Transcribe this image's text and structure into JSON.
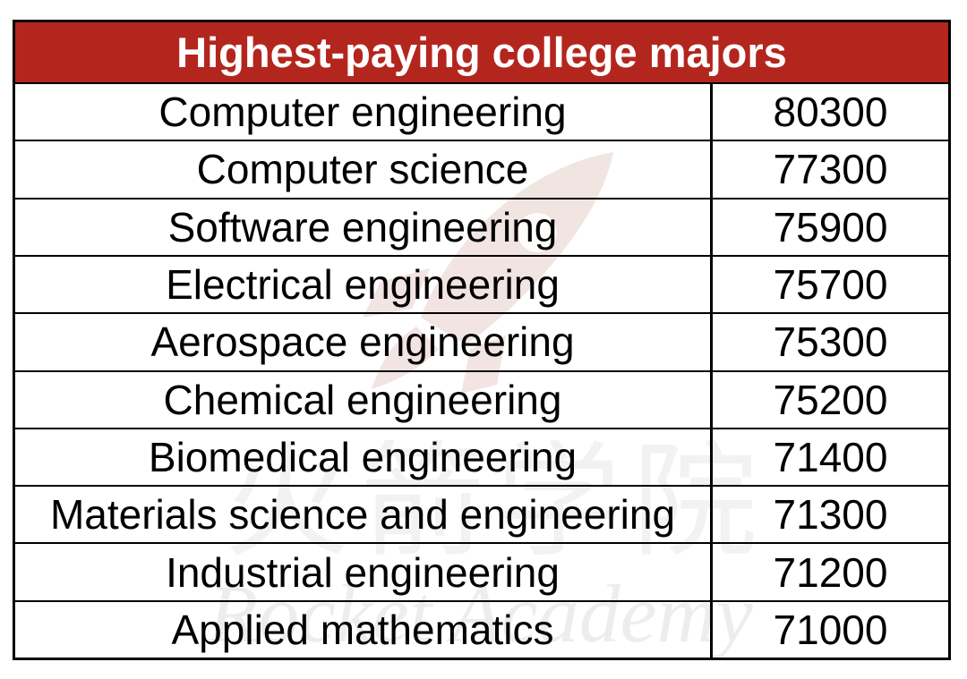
{
  "chart_data": {
    "type": "table",
    "title": "Highest-paying college majors",
    "rows": [
      {
        "major": "Computer engineering",
        "value": 80300
      },
      {
        "major": "Computer science",
        "value": 77300
      },
      {
        "major": "Software engineering",
        "value": 75900
      },
      {
        "major": "Electrical engineering",
        "value": 75700
      },
      {
        "major": "Aerospace engineering",
        "value": 75300
      },
      {
        "major": "Chemical engineering",
        "value": 75200
      },
      {
        "major": "Biomedical engineering",
        "value": 71400
      },
      {
        "major": "Materials science and engineering",
        "value": 71300
      },
      {
        "major": "Industrial engineering",
        "value": 71200
      },
      {
        "major": "Applied mathematics",
        "value": 71000
      }
    ]
  },
  "colors": {
    "header_background": "#B3261E",
    "header_text": "#FFFFFF",
    "grid_lines": "#000000",
    "watermark_logo": "#E6CFCB"
  },
  "watermark": {
    "logo_icon": "rocket-icon",
    "cjk_text": "火箭学院",
    "english_text": "Rocket Academy"
  }
}
